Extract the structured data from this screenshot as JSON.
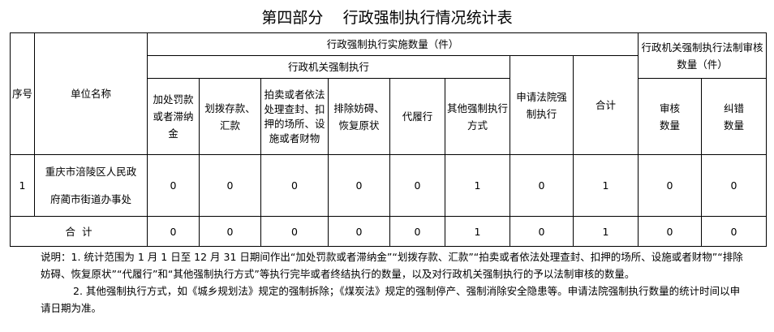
{
  "title": "第四部分    行政强制执行情况统计表",
  "headers": {
    "seq": "序号",
    "unit": "单位名称",
    "impl_group": "行政强制执行实施数量（件）",
    "agency_group": "行政机关强制执行",
    "cols": [
      "加处罚款或者滞纳金",
      "划拨存款、汇款",
      "拍卖或者依法处理查封、扣押的场所、设施或者财物",
      "排除妨碍、恢复原状",
      "代履行",
      "其他强制执行方式"
    ],
    "court": "申请法院强制执行",
    "total": "合计",
    "review_group": "行政机关强制执行法制审核数量（件）",
    "review": "审核数量",
    "correct": "纠错数量"
  },
  "rows": [
    {
      "seq": "1",
      "unit_line1": "重庆市涪陵区人民政",
      "unit_line2": "府蔺市街道办事处",
      "values": [
        "0",
        "0",
        "0",
        "0",
        "0",
        "1",
        "0",
        "1",
        "0",
        "0"
      ]
    }
  ],
  "total_row": {
    "label": "合  计",
    "values": [
      "0",
      "0",
      "0",
      "0",
      "0",
      "1",
      "0",
      "1",
      "0",
      "0"
    ]
  },
  "notes": [
    "说明：1. 统计范围为 1 月 1 日至 12 月 31 日期间作出“加处罚款或者滞纳金”“划拨存款、汇款”“拍卖或者依法处理查封、扣押的场所、设施或者财物”“排除妨碍、恢复原状”“代履行”和“其他强制执行方式”等执行完毕或者终结执行的数量，以及对行政机关强制执行的予以法制审核的数量。",
    "2. 其他强制执行方式，如《城乡规划法》规定的强制拆除；《煤炭法》规定的强制停产、强制消除安全隐患等。申请法院强制执行数量的统计时间以申请日期为准。"
  ]
}
